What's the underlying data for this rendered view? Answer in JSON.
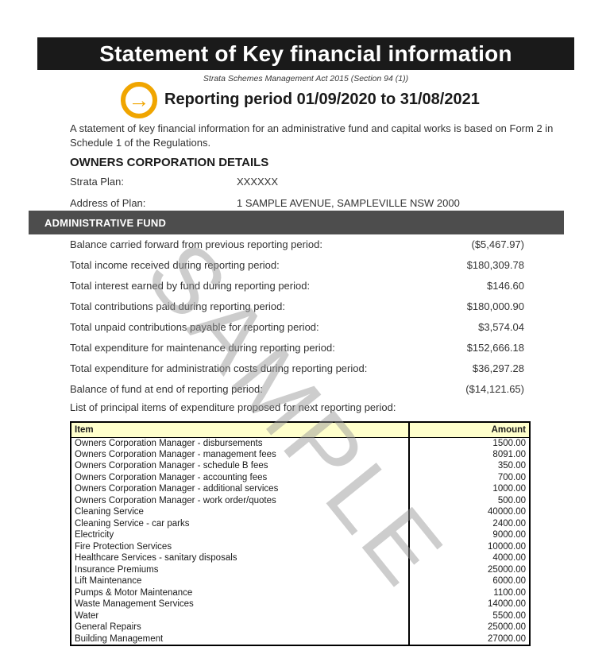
{
  "document": {
    "title": "Statement of Key financial information",
    "subtitle": "Strata Schemes Management Act 2015 (Section 94 (1))",
    "reporting_period_heading": "Reporting period 01/09/2020 to 31/08/2021",
    "intro": "A statement of key financial information for an administrative fund and capital works is based on Form 2 in Schedule 1 of the Regulations.",
    "watermark": "SAMPLE",
    "icon_glyph": "→",
    "colors": {
      "title_bar_bg": "#1a1a1a",
      "section_bar_bg": "#4d4d4d",
      "accent_orange": "#f0a500",
      "table_header_bg": "#ffffcc"
    }
  },
  "owners_corporation": {
    "heading": "OWNERS CORPORATION DETAILS",
    "fields": [
      {
        "label": "Strata Plan:",
        "value": "XXXXXX"
      },
      {
        "label": "Address of Plan:",
        "value": "1 SAMPLE AVENUE, SAMPLEVILLE NSW 2000"
      }
    ]
  },
  "administrative_fund": {
    "heading": "ADMINISTRATIVE FUND",
    "rows": [
      {
        "label": "Balance carried forward from previous reporting period:",
        "value": "($5,467.97)"
      },
      {
        "label": "Total income received during reporting period:",
        "value": "$180,309.78"
      },
      {
        "label": "Total interest earned by fund during reporting period:",
        "value": "$146.60"
      },
      {
        "label": "Total contributions paid during reporting period:",
        "value": "$180,000.90"
      },
      {
        "label": "Total unpaid contributions payable for reporting period:",
        "value": "$3,574.04"
      },
      {
        "label": "Total expenditure for maintenance during reporting period:",
        "value": "$152,666.18"
      },
      {
        "label": "Total expenditure for administration costs during reporting period:",
        "value": "$36,297.28"
      },
      {
        "label": "Balance of fund at end of reporting period:",
        "value": "($14,121.65)"
      }
    ],
    "expenditure_intro": "List of principal items of expenditure proposed for next reporting period:"
  },
  "expenditure_table": {
    "columns": [
      "Item",
      "Amount"
    ],
    "rows": [
      {
        "item": "Owners Corporation Manager - disbursements",
        "amount": "1500.00"
      },
      {
        "item": "Owners Corporation Manager - management fees",
        "amount": "8091.00"
      },
      {
        "item": "Owners Corporation Manager - schedule B fees",
        "amount": "350.00"
      },
      {
        "item": "Owners Corporation Manager - accounting fees",
        "amount": "700.00"
      },
      {
        "item": "Owners Corporation Manager - additional services",
        "amount": "1000.00"
      },
      {
        "item": "Owners Corporation Manager - work order/quotes",
        "amount": "500.00"
      },
      {
        "item": "Cleaning Service",
        "amount": "40000.00"
      },
      {
        "item": "Cleaning Service - car parks",
        "amount": "2400.00"
      },
      {
        "item": "Electricity",
        "amount": "9000.00"
      },
      {
        "item": "Fire Protection Services",
        "amount": "10000.00"
      },
      {
        "item": "Healthcare Services - sanitary disposals",
        "amount": "4000.00"
      },
      {
        "item": "Insurance Premiums",
        "amount": "25000.00"
      },
      {
        "item": "Lift Maintenance",
        "amount": "6000.00"
      },
      {
        "item": "Pumps & Motor Maintenance",
        "amount": "1100.00"
      },
      {
        "item": "Waste Management Services",
        "amount": "14000.00"
      },
      {
        "item": "Water",
        "amount": "5500.00"
      },
      {
        "item": "General Repairs",
        "amount": "25000.00"
      },
      {
        "item": "Building Management",
        "amount": "27000.00"
      }
    ]
  }
}
